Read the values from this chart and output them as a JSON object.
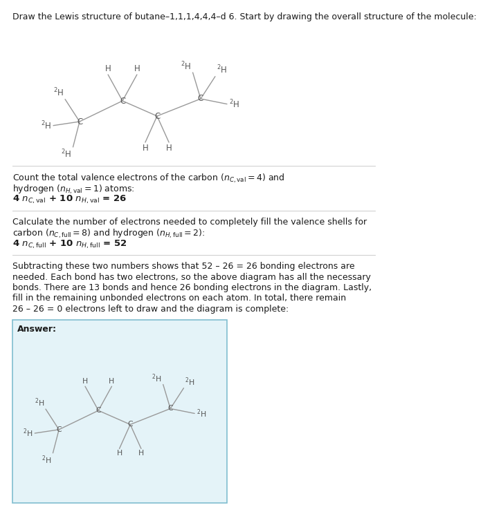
{
  "bg_color": "#ffffff",
  "answer_bg": "#e4f3f8",
  "answer_border": "#80bdd0",
  "text_color": "#1a1a1a",
  "bond_color": "#999999",
  "atom_color": "#555555",
  "font_size_body": 9.0,
  "font_size_atom": 8.5,
  "title": "Draw the Lewis structure of butane–1,1,1,4,4,4–d 6. Start by drawing the overall structure of the molecule:",
  "s1_line1": "Count the total valence electrons of the carbon ($n_{C,\\mathrm{val}} = 4$) and",
  "s1_line2": "hydrogen ($n_{H,\\mathrm{val}} = 1$) atoms:",
  "s1_eq": "4 $n_{C,\\mathrm{val}}$ + 10 $n_{H,\\mathrm{val}}$ = 26",
  "s2_line1": "Calculate the number of electrons needed to completely fill the valence shells for",
  "s2_line2": "carbon ($n_{C,\\mathrm{full}} = 8$) and hydrogen ($n_{H,\\mathrm{full}} = 2$):",
  "s2_eq": "4 $n_{C,\\mathrm{full}}$ + 10 $n_{H,\\mathrm{full}}$ = 52",
  "s3_lines": [
    "Subtracting these two numbers shows that 52 – 26 = 26 bonding electrons are",
    "needed. Each bond has two electrons, so the above diagram has all the necessary",
    "bonds. There are 13 bonds and hence 26 bonding electrons in the diagram. Lastly,",
    "fill in the remaining unbonded electrons on each atom. In total, there remain",
    "26 – 26 = 0 electrons left to draw and the diagram is complete:"
  ],
  "answer_label": "Answer:"
}
